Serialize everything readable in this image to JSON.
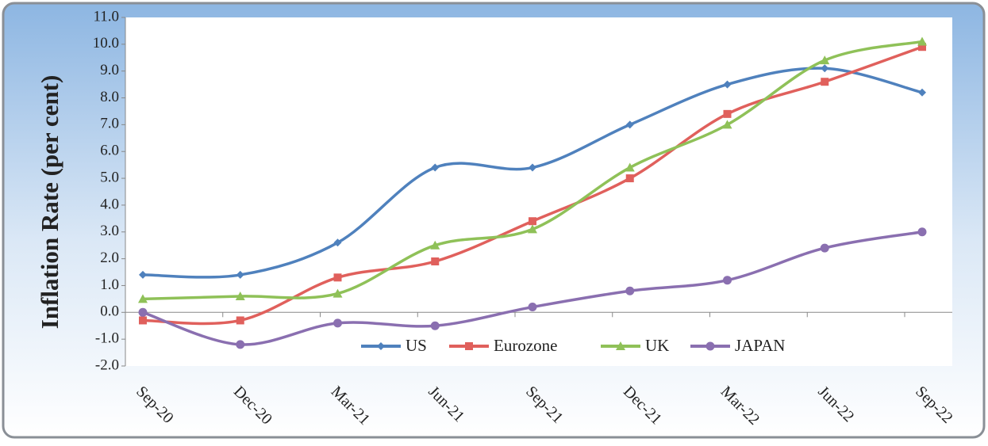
{
  "chart_data": {
    "type": "line",
    "y_label": "Inflation Rate (per cent)",
    "categories": [
      "Sep-20",
      "Dec-20",
      "Mar-21",
      "Jun-21",
      "Sep-21",
      "Dec-21",
      "Mar-22",
      "Jun-22",
      "Sep-22"
    ],
    "series": [
      {
        "name": "US",
        "color": "#4f81bd",
        "marker": "diamond",
        "values": [
          1.4,
          1.4,
          2.6,
          5.4,
          5.4,
          7.0,
          8.5,
          9.1,
          8.2
        ]
      },
      {
        "name": "Eurozone",
        "color": "#e0605c",
        "marker": "square",
        "values": [
          -0.3,
          -0.3,
          1.3,
          1.9,
          3.4,
          5.0,
          7.4,
          8.6,
          9.9
        ]
      },
      {
        "name": "UK",
        "color": "#8fc158",
        "marker": "triangle",
        "values": [
          0.5,
          0.6,
          0.7,
          2.5,
          3.1,
          5.4,
          7.0,
          9.4,
          10.1
        ]
      },
      {
        "name": "JAPAN",
        "color": "#8a6fb0",
        "marker": "circle",
        "values": [
          0.0,
          -1.2,
          -0.4,
          -0.5,
          0.2,
          0.8,
          1.2,
          2.4,
          3.0
        ]
      }
    ],
    "ylim": [
      -2,
      11
    ],
    "yticks": [
      {
        "value": 11,
        "label": "11.0"
      },
      {
        "value": 10,
        "label": "10.0"
      },
      {
        "value": 9,
        "label": "9.0"
      },
      {
        "value": 8,
        "label": "8.0"
      },
      {
        "value": 7,
        "label": "7.0"
      },
      {
        "value": 6,
        "label": "6.0"
      },
      {
        "value": 5,
        "label": "5.0"
      },
      {
        "value": 4,
        "label": "4.0"
      },
      {
        "value": 3,
        "label": "3.0"
      },
      {
        "value": 2,
        "label": "2.0"
      },
      {
        "value": 1,
        "label": "1.0"
      },
      {
        "value": 0,
        "label": "0.0"
      },
      {
        "value": -1,
        "label": "-1.0"
      },
      {
        "value": -2,
        "label": "-2.0"
      }
    ],
    "smooth": true,
    "legend": "bottom"
  }
}
